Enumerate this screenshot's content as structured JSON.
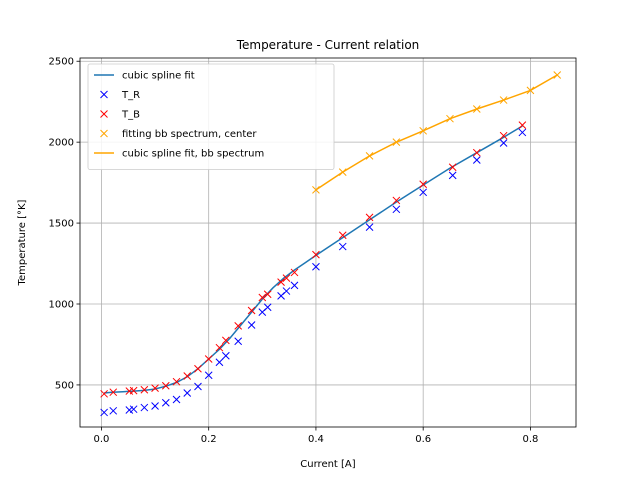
{
  "chart_data": {
    "type": "line",
    "title": "Temperature - Current relation",
    "xlabel": "Current [A]",
    "ylabel": "Temperature [°K]",
    "xlim": [
      -0.04,
      0.885
    ],
    "ylim": [
      240,
      2520
    ],
    "xticks": [
      0.0,
      0.2,
      0.4,
      0.6,
      0.8
    ],
    "xtick_labels": [
      "0.0",
      "0.2",
      "0.4",
      "0.6",
      "0.8"
    ],
    "yticks": [
      500,
      1000,
      1500,
      2000,
      2500
    ],
    "ytick_labels": [
      "500",
      "1000",
      "1500",
      "2000",
      "2500"
    ],
    "grid": true,
    "legend_position": "top-left",
    "series": [
      {
        "name": "cubic spline fit",
        "style": "line",
        "color": "#1f77b4",
        "x": [
          0.005,
          0.02,
          0.04,
          0.06,
          0.08,
          0.1,
          0.12,
          0.14,
          0.16,
          0.18,
          0.2,
          0.22,
          0.24,
          0.26,
          0.28,
          0.3,
          0.32,
          0.34,
          0.36,
          0.38,
          0.4,
          0.45,
          0.5,
          0.55,
          0.6,
          0.65,
          0.7,
          0.75,
          0.785
        ],
        "y": [
          450,
          455,
          458,
          462,
          466,
          475,
          492,
          515,
          550,
          600,
          660,
          720,
          790,
          870,
          950,
          1030,
          1100,
          1160,
          1210,
          1255,
          1300,
          1410,
          1520,
          1630,
          1735,
          1840,
          1935,
          2030,
          2100
        ]
      },
      {
        "name": "T_R",
        "style": "marker",
        "marker": "x",
        "color": "#0000ff",
        "x": [
          0.005,
          0.022,
          0.052,
          0.06,
          0.08,
          0.1,
          0.12,
          0.14,
          0.16,
          0.18,
          0.2,
          0.22,
          0.232,
          0.255,
          0.28,
          0.3,
          0.31,
          0.335,
          0.345,
          0.36,
          0.4,
          0.45,
          0.5,
          0.55,
          0.6,
          0.655,
          0.7,
          0.75,
          0.785
        ],
        "y": [
          330,
          340,
          345,
          350,
          360,
          370,
          390,
          410,
          450,
          490,
          560,
          640,
          680,
          770,
          870,
          950,
          980,
          1050,
          1080,
          1115,
          1230,
          1355,
          1475,
          1585,
          1690,
          1795,
          1890,
          1995,
          2060
        ]
      },
      {
        "name": "T_B",
        "style": "marker",
        "marker": "x",
        "color": "#ff0000",
        "x": [
          0.005,
          0.022,
          0.052,
          0.06,
          0.08,
          0.1,
          0.12,
          0.14,
          0.16,
          0.18,
          0.2,
          0.22,
          0.232,
          0.255,
          0.28,
          0.3,
          0.31,
          0.335,
          0.345,
          0.36,
          0.4,
          0.45,
          0.5,
          0.55,
          0.6,
          0.655,
          0.7,
          0.75,
          0.785
        ],
        "y": [
          445,
          455,
          462,
          465,
          470,
          480,
          495,
          520,
          555,
          600,
          660,
          730,
          775,
          865,
          960,
          1040,
          1060,
          1135,
          1160,
          1195,
          1305,
          1425,
          1535,
          1640,
          1740,
          1845,
          1935,
          2040,
          2105
        ]
      },
      {
        "name": "fitting bb spectrum, center",
        "style": "marker",
        "marker": "x",
        "color": "#ffa500",
        "x": [
          0.4,
          0.45,
          0.5,
          0.55,
          0.6,
          0.65,
          0.7,
          0.75,
          0.8,
          0.85
        ],
        "y": [
          1705,
          1815,
          1915,
          2000,
          2070,
          2145,
          2205,
          2260,
          2320,
          2415
        ]
      },
      {
        "name": "cubic spline fit, bb spectrum",
        "style": "line",
        "color": "#ffa500",
        "x": [
          0.4,
          0.45,
          0.5,
          0.55,
          0.6,
          0.65,
          0.7,
          0.75,
          0.8,
          0.85
        ],
        "y": [
          1705,
          1815,
          1915,
          2000,
          2070,
          2145,
          2205,
          2260,
          2320,
          2415
        ]
      }
    ]
  }
}
